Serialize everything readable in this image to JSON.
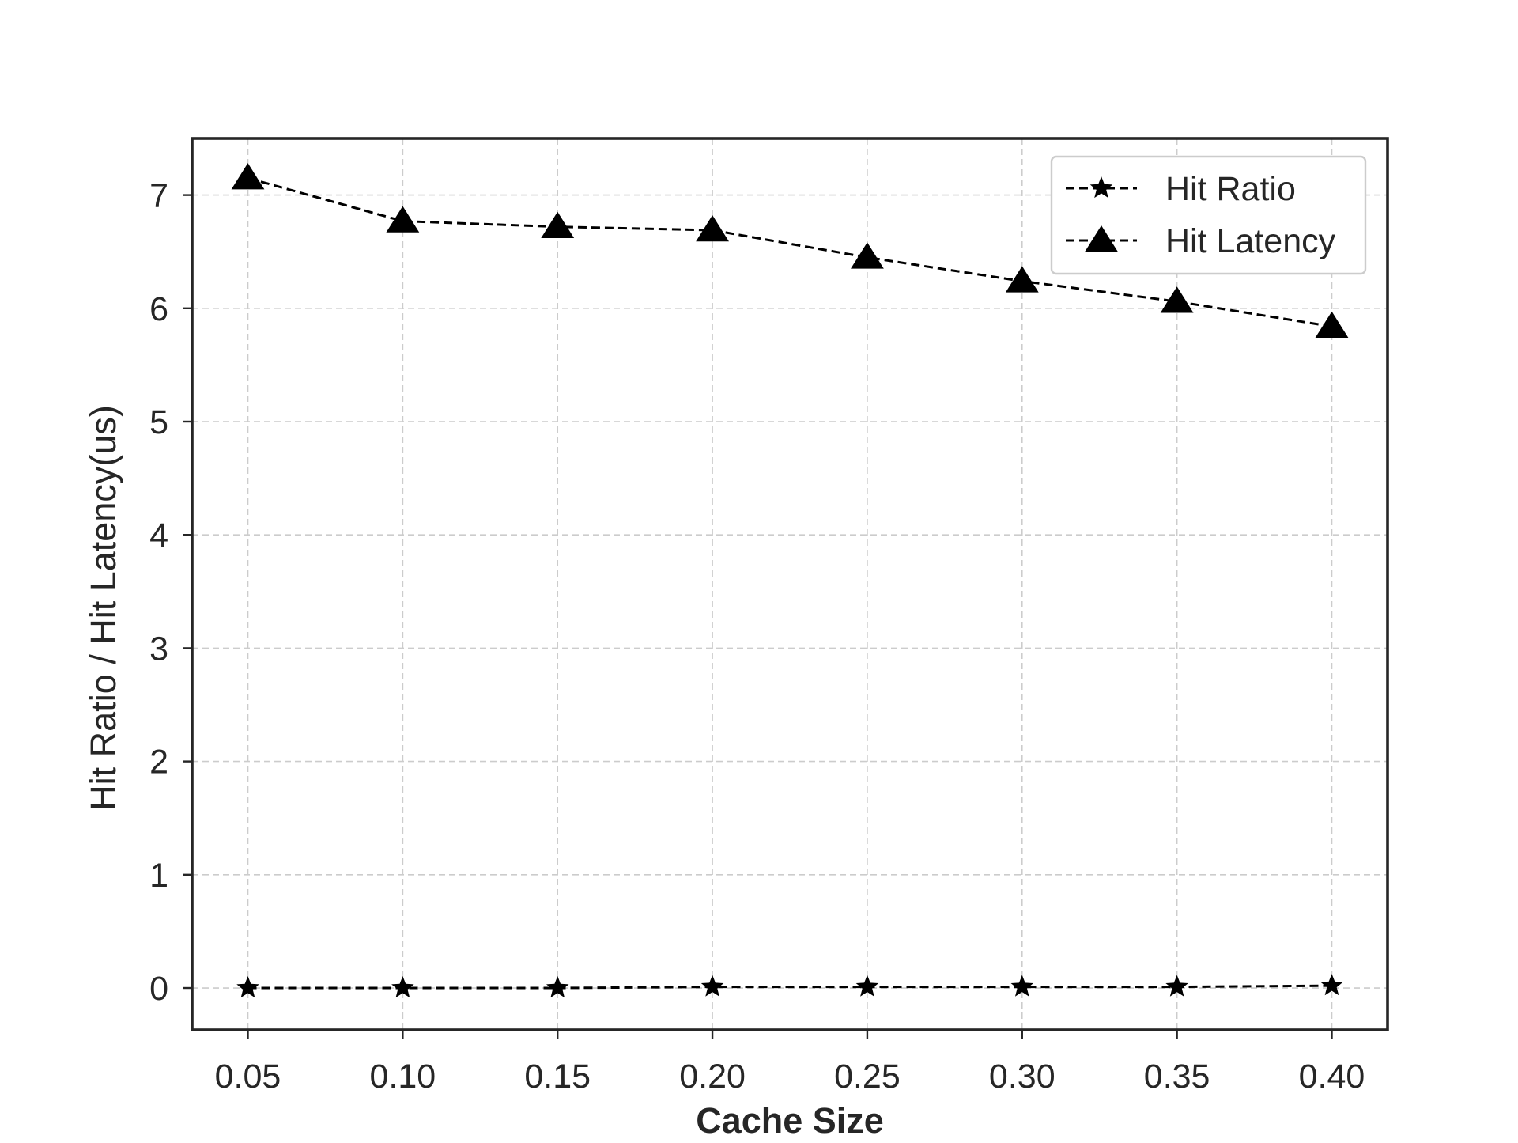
{
  "chart_data": {
    "type": "line",
    "title": "",
    "xlabel": "Cache Size",
    "ylabel": "Hit Ratio / Hit Latency(us)",
    "x": [
      0.05,
      0.1,
      0.15,
      0.2,
      0.25,
      0.3,
      0.35,
      0.4
    ],
    "xtick_labels": [
      "0.05",
      "0.10",
      "0.15",
      "0.20",
      "0.25",
      "0.30",
      "0.35",
      "0.40"
    ],
    "xlim": [
      0.032,
      0.418
    ],
    "ylim": [
      -0.37,
      7.5
    ],
    "yticks": [
      0,
      1,
      2,
      3,
      4,
      5,
      6,
      7
    ],
    "ytick_labels": [
      "0",
      "1",
      "2",
      "3",
      "4",
      "5",
      "6",
      "7"
    ],
    "grid": true,
    "legend_position": "top-right",
    "series": [
      {
        "name": "Hit Ratio",
        "marker": "star",
        "line_style": "dashed",
        "color": "#000000",
        "values": [
          0.0,
          0.0,
          0.0,
          0.01,
          0.01,
          0.01,
          0.01,
          0.02
        ]
      },
      {
        "name": "Hit Latency",
        "marker": "triangle",
        "line_style": "dashed",
        "color": "#000000",
        "values": [
          7.15,
          6.77,
          6.72,
          6.69,
          6.45,
          6.24,
          6.06,
          5.84
        ]
      }
    ]
  }
}
